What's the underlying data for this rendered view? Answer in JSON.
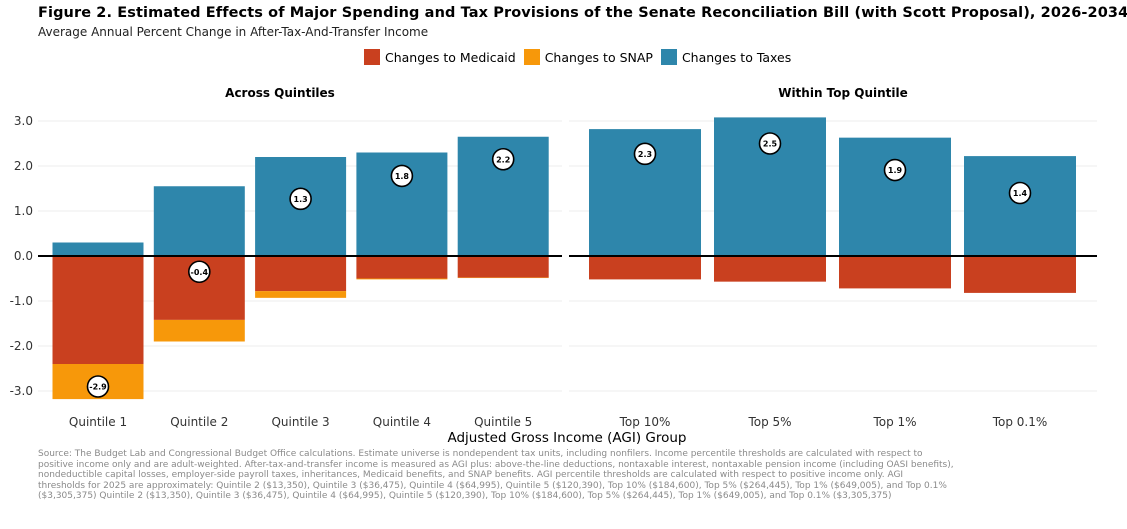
{
  "header": {
    "title": "Figure 2. Estimated Effects of Major Spending and Tax Provisions of the Senate Reconciliation Bill (with Scott Proposal), 2026-2034",
    "subtitle": "Average Annual Percent Change in After-Tax-And-Transfer Income"
  },
  "legend": [
    {
      "label": "Changes to Medicaid",
      "color": "#c9401f"
    },
    {
      "label": "Changes to SNAP",
      "color": "#f7980a"
    },
    {
      "label": "Changes to Taxes",
      "color": "#2e86ab"
    }
  ],
  "chart_data": {
    "type": "bar",
    "stacked": true,
    "xlabel": "Adjusted Gross Income (AGI) Group",
    "ylim": [
      -3.2,
      3.1
    ],
    "yticks": [
      "3.0",
      "2.0",
      "1.0",
      "0.0",
      "-1.0",
      "-2.0",
      "-3.0"
    ],
    "ytick_values": [
      3,
      2,
      1,
      0,
      -1,
      -2,
      -3
    ],
    "grid": true,
    "legend_position": "top",
    "panels": [
      {
        "title": "Across Quintiles",
        "categories": [
          "Quintile 1",
          "Quintile 2",
          "Quintile 3",
          "Quintile 4",
          "Quintile 5"
        ],
        "series": [
          {
            "name": "Changes to Medicaid",
            "color": "#c9401f",
            "values": [
              -2.4,
              -1.42,
              -0.78,
              -0.5,
              -0.48
            ]
          },
          {
            "name": "Changes to SNAP",
            "color": "#f7980a",
            "values": [
              -0.78,
              -0.48,
              -0.15,
              -0.02,
              -0.01
            ]
          },
          {
            "name": "Changes to Taxes",
            "color": "#2e86ab",
            "values": [
              0.3,
              1.55,
              2.2,
              2.3,
              2.65
            ]
          }
        ],
        "net_labels": [
          "-2.9",
          "-0.4",
          "1.3",
          "1.8",
          "2.2"
        ],
        "net_values": [
          -2.9,
          -0.35,
          1.27,
          1.78,
          2.15
        ]
      },
      {
        "title": "Within Top Quintile",
        "categories": [
          "Top 10%",
          "Top 5%",
          "Top 1%",
          "Top 0.1%"
        ],
        "series": [
          {
            "name": "Changes to Medicaid",
            "color": "#c9401f",
            "values": [
              -0.52,
              -0.57,
              -0.72,
              -0.82
            ]
          },
          {
            "name": "Changes to SNAP",
            "color": "#f7980a",
            "values": [
              0,
              0,
              0,
              0
            ]
          },
          {
            "name": "Changes to Taxes",
            "color": "#2e86ab",
            "values": [
              2.82,
              3.08,
              2.63,
              2.22
            ]
          }
        ],
        "net_labels": [
          "2.3",
          "2.5",
          "1.9",
          "1.4"
        ],
        "net_values": [
          2.27,
          2.5,
          1.91,
          1.4
        ]
      }
    ]
  },
  "source": [
    "Source: The Budget Lab and Congressional Budget Office calculations. Estimate universe is nondependent tax units, including nonfilers. Income percentile thresholds are calculated with respect to",
    "positive income only and are adult-weighted. After-tax-and-transfer income is measured as AGI plus: above-the-line deductions, nontaxable interest, nontaxable pension income (including OASI benefits),",
    "nondeductible capital losses, employer-side payroll taxes, inheritances, Medicaid benefits, and SNAP benefits. AGI percentile thresholds are calculated with respect to positive income only. AGI",
    "thresholds for 2025 are approximately: Quintile 2 ($13,350), Quintile 3 ($36,475), Quintile 4 ($64,995), Quintile 5 ($120,390), Top 10% ($184,600), Top 5% ($264,445), Top 1% ($649,005), and Top 0.1%",
    "($3,305,375) Quintile 2 ($13,350), Quintile 3 ($36,475), Quintile 4 ($64,995), Quintile 5 ($120,390), Top 10% ($184,600), Top 5% ($264,445), Top 1% ($649,005), and Top 0.1% ($3,305,375)"
  ]
}
